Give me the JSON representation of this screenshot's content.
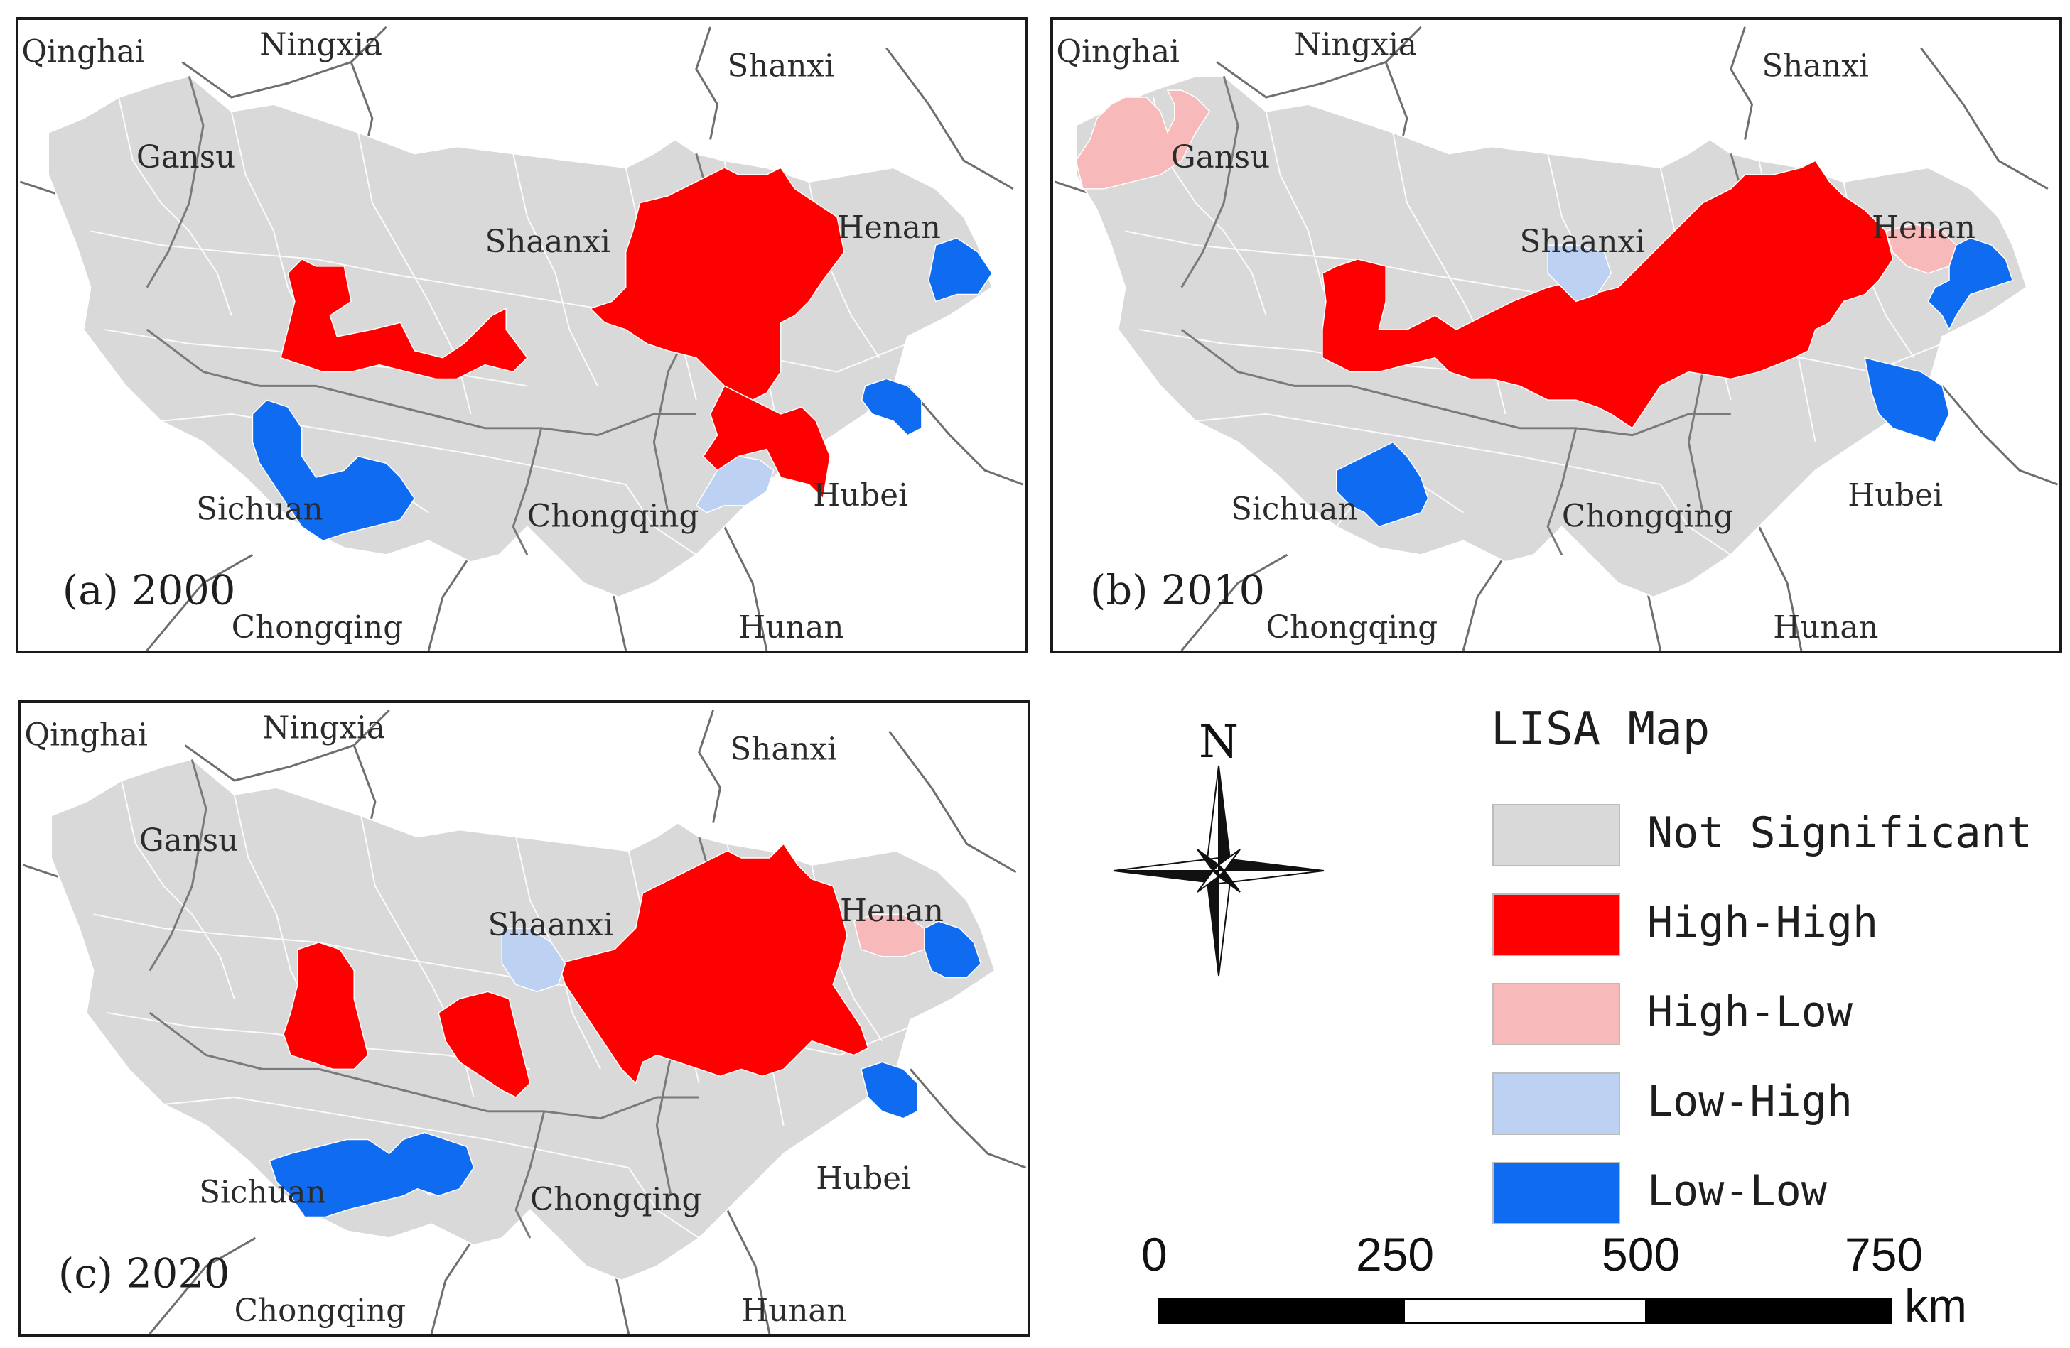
{
  "panels": [
    {
      "caption": "(a)  2000",
      "labels": {
        "qinghai": "Qinghai",
        "ningxia": "Ningxia",
        "shanxi": "Shanxi",
        "gansu": "Gansu",
        "shaanxi": "Shaanxi",
        "henan": "Henan",
        "sichuan": "Sichuan",
        "chongqing": "Chongqing",
        "hubei": "Hubei",
        "chongqing2": "Chongqing",
        "hunan": "Hunan"
      }
    },
    {
      "caption": "(b)  2010",
      "labels": {
        "qinghai": "Qinghai",
        "ningxia": "Ningxia",
        "shanxi": "Shanxi",
        "gansu": "Gansu",
        "shaanxi": "Shaanxi",
        "henan": "Henan",
        "sichuan": "Sichuan",
        "chongqing": "Chongqing",
        "hubei": "Hubei",
        "chongqing2": "Chongqing",
        "hunan": "Hunan"
      }
    },
    {
      "caption": "(c)  2020",
      "labels": {
        "qinghai": "Qinghai",
        "ningxia": "Ningxia",
        "shanxi": "Shanxi",
        "gansu": "Gansu",
        "shaanxi": "Shaanxi",
        "henan": "Henan",
        "sichuan": "Sichuan",
        "chongqing": "Chongqing",
        "hubei": "Hubei",
        "chongqing2": "Chongqing",
        "hunan": "Hunan"
      }
    }
  ],
  "compass": {
    "north_label": "N",
    "icon": "north-arrow-compass-star"
  },
  "legend": {
    "title": "LISA Map",
    "items": [
      {
        "label": "Not Significant",
        "color": "#d9d9d9"
      },
      {
        "label": "High-High",
        "color": "#ff0000"
      },
      {
        "label": "High-Low",
        "color": "#f7b9b9"
      },
      {
        "label": "Low-High",
        "color": "#bdd1f2"
      },
      {
        "label": "Low-Low",
        "color": "#0f6cf0"
      }
    ]
  },
  "scale_bar": {
    "ticks": [
      "0",
      "250",
      "500",
      "750"
    ],
    "unit": "km"
  },
  "colors": {
    "not_significant": "#d9d9d9",
    "high_high": "#ff0000",
    "high_low": "#f7b9b9",
    "low_high": "#bdd1f2",
    "low_low": "#0f6cf0",
    "county_border": "#ffffff",
    "province_border": "#7a7a7a"
  }
}
